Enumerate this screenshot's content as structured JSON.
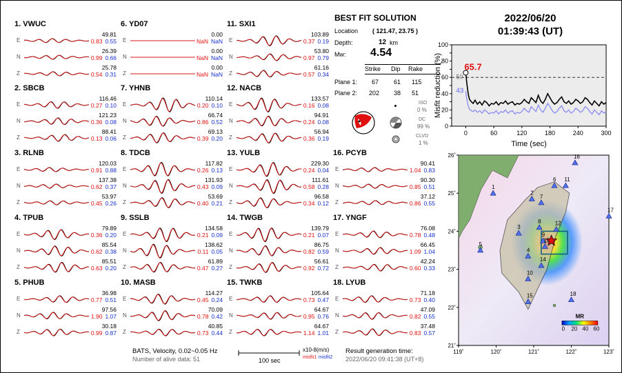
{
  "stations": [
    {
      "label": "1.  VWUC",
      "comps": [
        {
          "c": "E",
          "amp": "49.81",
          "m1": "0.83",
          "m2": "0.55",
          "shape": "flat"
        },
        {
          "c": "N",
          "amp": "26.39",
          "m1": "0.99",
          "m2": "0.66",
          "shape": "flat"
        },
        {
          "c": "Z",
          "amp": "25.78",
          "m1": "0.54",
          "m2": "0.31",
          "shape": "flat"
        }
      ]
    },
    {
      "label": "2.  SBCB",
      "comps": [
        {
          "c": "E",
          "amp": "116.46",
          "m1": "0.27",
          "m2": "0.10",
          "shape": "low"
        },
        {
          "c": "N",
          "amp": "121.23",
          "m1": "0.36",
          "m2": "0.08",
          "shape": "low"
        },
        {
          "c": "Z",
          "amp": "88.41",
          "m1": "0.13",
          "m2": "0.06",
          "shape": "low"
        }
      ]
    },
    {
      "label": "3.  RLNB",
      "comps": [
        {
          "c": "E",
          "amp": "120.03",
          "m1": "0.91",
          "m2": "0.88",
          "shape": "flat"
        },
        {
          "c": "N",
          "amp": "137.38",
          "m1": "0.62",
          "m2": "0.37",
          "shape": "flat"
        },
        {
          "c": "Z",
          "amp": "53.97",
          "m1": "0.45",
          "m2": "0.26",
          "shape": "flat"
        }
      ]
    },
    {
      "label": "4.  TPUB",
      "comps": [
        {
          "c": "E",
          "amp": "79.89",
          "m1": "0.36",
          "m2": "0.20",
          "shape": "mid"
        },
        {
          "c": "N",
          "amp": "85.54",
          "m1": "0.62",
          "m2": "0.38",
          "shape": "mid"
        },
        {
          "c": "Z",
          "amp": "85.51",
          "m1": "0.63",
          "m2": "0.20",
          "shape": "mid"
        }
      ]
    },
    {
      "label": "5.  PHUB",
      "comps": [
        {
          "c": "E",
          "amp": "36.98",
          "m1": "0.77",
          "m2": "0.51",
          "shape": "low"
        },
        {
          "c": "N",
          "amp": "97.56",
          "m1": "1.90",
          "m2": "1.07",
          "shape": "low"
        },
        {
          "c": "Z",
          "amp": "30.18",
          "m1": "0.99",
          "m2": "0.87",
          "shape": "low"
        }
      ]
    },
    {
      "label": "6.  YD07",
      "comps": [
        {
          "c": "E",
          "amp": "0.00",
          "m1": "NaN",
          "m2": "NaN",
          "shape": "none"
        },
        {
          "c": "N",
          "amp": "0.00",
          "m1": "NaN",
          "m2": "NaN",
          "shape": "none"
        },
        {
          "c": "Z",
          "amp": "0.00",
          "m1": "NaN",
          "m2": "NaN",
          "shape": "none"
        }
      ]
    },
    {
      "label": "7.  YHNB",
      "comps": [
        {
          "c": "E",
          "amp": "110.14",
          "m1": "0.20",
          "m2": "0.10",
          "shape": "big"
        },
        {
          "c": "N",
          "amp": "66.74",
          "m1": "0.86",
          "m2": "0.52",
          "shape": "mid"
        },
        {
          "c": "Z",
          "amp": "69.13",
          "m1": "0.39",
          "m2": "0.20",
          "shape": "mid"
        }
      ]
    },
    {
      "label": "8.  TDCB",
      "comps": [
        {
          "c": "E",
          "amp": "117.82",
          "m1": "0.26",
          "m2": "0.13",
          "shape": "big"
        },
        {
          "c": "N",
          "amp": "131.93",
          "m1": "0.43",
          "m2": "0.09",
          "shape": "big"
        },
        {
          "c": "Z",
          "amp": "53.69",
          "m1": "0.40",
          "m2": "0.21",
          "shape": "mid"
        }
      ]
    },
    {
      "label": "9.  SSLB",
      "comps": [
        {
          "c": "E",
          "amp": "134.58",
          "m1": "0.21",
          "m2": "0.09",
          "shape": "big"
        },
        {
          "c": "N",
          "amp": "138.62",
          "m1": "0.11",
          "m2": "0.05",
          "shape": "big"
        },
        {
          "c": "Z",
          "amp": "61.89",
          "m1": "0.47",
          "m2": "0.27",
          "shape": "mid"
        }
      ]
    },
    {
      "label": "10.  MASB",
      "comps": [
        {
          "c": "E",
          "amp": "114.27",
          "m1": "0.45",
          "m2": "0.24",
          "shape": "mid"
        },
        {
          "c": "N",
          "amp": "70.09",
          "m1": "0.78",
          "m2": "0.42",
          "shape": "mid"
        },
        {
          "c": "Z",
          "amp": "40.85",
          "m1": "0.73",
          "m2": "0.44",
          "shape": "low"
        }
      ]
    },
    {
      "label": "11.  SXI1",
      "comps": [
        {
          "c": "E",
          "amp": "103.89",
          "m1": "0.37",
          "m2": "0.19",
          "shape": "mid"
        },
        {
          "c": "N",
          "amp": "53.80",
          "m1": "0.97",
          "m2": "0.79",
          "shape": "low"
        },
        {
          "c": "Z",
          "amp": "61.16",
          "m1": "0.57",
          "m2": "0.34",
          "shape": "low"
        }
      ]
    },
    {
      "label": "12.  NACB",
      "comps": [
        {
          "c": "E",
          "amp": "133.57",
          "m1": "0.16",
          "m2": "0.08",
          "shape": "big"
        },
        {
          "c": "N",
          "amp": "94.91",
          "m1": "0.24",
          "m2": "0.08",
          "shape": "mid"
        },
        {
          "c": "Z",
          "amp": "56.94",
          "m1": "0.36",
          "m2": "0.19",
          "shape": "mid"
        }
      ]
    },
    {
      "label": "13.  YULB",
      "comps": [
        {
          "c": "E",
          "amp": "229.30",
          "m1": "0.24",
          "m2": "0.04",
          "shape": "big"
        },
        {
          "c": "N",
          "amp": "111.61",
          "m1": "0.58",
          "m2": "0.28",
          "shape": "big"
        },
        {
          "c": "Z",
          "amp": "96.58",
          "m1": "0.34",
          "m2": "0.12",
          "shape": "mid"
        }
      ]
    },
    {
      "label": "14.  TWGB",
      "comps": [
        {
          "c": "E",
          "amp": "139.79",
          "m1": "0.21",
          "m2": "0.07",
          "shape": "big"
        },
        {
          "c": "N",
          "amp": "86.75",
          "m1": "0.82",
          "m2": "0.59",
          "shape": "mid"
        },
        {
          "c": "Z",
          "amp": "56.61",
          "m1": "0.92",
          "m2": "0.72",
          "shape": "mid"
        }
      ]
    },
    {
      "label": "15.  TWKB",
      "comps": [
        {
          "c": "E",
          "amp": "105.64",
          "m1": "0.73",
          "m2": "0.47",
          "shape": "low"
        },
        {
          "c": "N",
          "amp": "64.67",
          "m1": "0.95",
          "m2": "0.76",
          "shape": "low"
        },
        {
          "c": "Z",
          "amp": "64.67",
          "m1": "1.14",
          "m2": "1.01",
          "shape": "low"
        }
      ]
    },
    {
      "label": "16.  PCYB",
      "comps": [
        {
          "c": "E",
          "amp": "90.41",
          "m1": "1.04",
          "m2": "0.83",
          "shape": "flat"
        },
        {
          "c": "N",
          "amp": "90.30",
          "m1": "0.85",
          "m2": "0.51",
          "shape": "flat"
        },
        {
          "c": "Z",
          "amp": "37.12",
          "m1": "0.86",
          "m2": "0.55",
          "shape": "flat"
        }
      ]
    },
    {
      "label": "17.  YNGF",
      "comps": [
        {
          "c": "E",
          "amp": "76.08",
          "m1": "0.78",
          "m2": "0.48",
          "shape": "low"
        },
        {
          "c": "N",
          "amp": "66.45",
          "m1": "1.09",
          "m2": "1.04",
          "shape": "low"
        },
        {
          "c": "Z",
          "amp": "42.24",
          "m1": "0.60",
          "m2": "0.33",
          "shape": "low"
        }
      ]
    },
    {
      "label": "18.  LYUB",
      "comps": [
        {
          "c": "E",
          "amp": "71.18",
          "m1": "0.73",
          "m2": "0.40",
          "shape": "low"
        },
        {
          "c": "N",
          "amp": "47.09",
          "m1": "0.82",
          "m2": "0.55",
          "shape": "low"
        },
        {
          "c": "Z",
          "amp": "37.48",
          "m1": "0.83",
          "m2": "0.57",
          "shape": "low"
        }
      ]
    }
  ],
  "solution": {
    "title": "BEST FIT SOLUTION",
    "location_label": "Location",
    "location_value": "( 121.47, 23.75 )",
    "depth_label": "Depth:",
    "depth_value": "12",
    "depth_unit": "km",
    "mw_label": "Mw:",
    "mw_value": "4.54",
    "headers": [
      "Strike",
      "Dip",
      "Rake"
    ],
    "planes": [
      {
        "label": "Plane 1:",
        "strike": "67",
        "dip": "61",
        "rake": "115"
      },
      {
        "label": "Plane 2:",
        "strike": "202",
        "dip": "38",
        "rake": "51"
      }
    ],
    "iso_label": "ISO",
    "iso_value": "0 %",
    "dc_label": "DC",
    "dc_value": "99 %",
    "clvd_label": "CLVD",
    "clvd_value": "1 %"
  },
  "datetime": {
    "date": "2022/06/20",
    "time": "01:39:43  (UT)"
  },
  "footer": {
    "info1": "BATS, Velocity, 0.02~0.05 Hz",
    "info2": "Number of alive data: 51",
    "scale_label": "100 sec",
    "amp_unit": "x10-8(m/s)",
    "misfit1": "misfit1",
    "misfit2": "misfit2",
    "gen_label": "Result generation time:",
    "gen_value": "2022/06/20 09:41:38 (UT+8)"
  },
  "chart_data": [
    {
      "type": "line",
      "ylabel": "Misfit reduction (%)",
      "xlabel": "Time (sec)",
      "xlim": [
        -30,
        300
      ],
      "ylim": [
        0,
        100
      ],
      "xticks": [
        0,
        60,
        120,
        180,
        240,
        300
      ],
      "yticks": [
        0,
        10,
        20,
        30,
        40,
        50,
        60,
        70,
        80,
        90,
        100
      ],
      "hline": 60,
      "peak_label": "65.7",
      "label_50": "50",
      "label_43": "43",
      "series": [
        {
          "color": "#000000",
          "x": [
            0,
            2,
            4,
            6,
            8,
            12,
            16,
            20,
            25,
            30,
            35,
            40,
            45,
            50,
            55,
            60,
            65,
            70,
            75,
            80,
            85,
            90,
            95,
            100,
            105,
            110,
            115,
            120,
            125,
            130,
            135,
            140,
            145,
            150,
            155,
            160,
            165,
            170,
            175,
            180,
            185,
            190,
            195,
            200,
            205,
            210,
            215,
            220,
            225,
            230,
            235,
            240,
            245,
            250,
            255,
            260,
            265,
            270,
            275,
            280,
            285,
            290,
            295,
            300
          ],
          "y": [
            65.7,
            55,
            45,
            38,
            33,
            30,
            28,
            32,
            27,
            30,
            26,
            31,
            29,
            25,
            28,
            27,
            30,
            26,
            29,
            28,
            31,
            27,
            29,
            30,
            26,
            28,
            27,
            29,
            33,
            30,
            28,
            35,
            32,
            29,
            38,
            31,
            28,
            33,
            40,
            35,
            30,
            27,
            29,
            33,
            36,
            30,
            28,
            31,
            27,
            29,
            33,
            31,
            28,
            30,
            35,
            33,
            29,
            26,
            31,
            28,
            25,
            30,
            27,
            29
          ]
        },
        {
          "color": "#9090f0",
          "x": [
            0,
            2,
            4,
            6,
            8,
            12,
            16,
            20,
            25,
            30,
            35,
            40,
            45,
            50,
            55,
            60,
            65,
            70,
            75,
            80,
            85,
            90,
            95,
            100,
            105,
            110,
            115,
            120,
            125,
            130,
            135,
            140,
            145,
            150,
            155,
            160,
            165,
            170,
            175,
            180,
            185,
            190,
            195,
            200,
            205,
            210,
            215,
            220,
            225,
            230,
            235,
            240,
            245,
            250,
            255,
            260,
            265,
            270,
            275,
            280,
            285,
            290,
            295,
            300
          ],
          "y": [
            43,
            35,
            28,
            24,
            21,
            19,
            18,
            20,
            17,
            19,
            16,
            20,
            18,
            15,
            17,
            16,
            19,
            15,
            18,
            17,
            20,
            16,
            18,
            19,
            15,
            17,
            16,
            18,
            22,
            19,
            17,
            24,
            21,
            18,
            26,
            20,
            17,
            22,
            28,
            24,
            19,
            16,
            18,
            22,
            25,
            19,
            17,
            20,
            16,
            18,
            22,
            20,
            17,
            19,
            24,
            22,
            18,
            15,
            20,
            17,
            14,
            19,
            16,
            18
          ]
        }
      ]
    },
    {
      "type": "heatmap",
      "xlabel": "",
      "ylabel": "",
      "xlim": [
        119,
        123
      ],
      "ylim": [
        21,
        26
      ],
      "xticks": [
        "119˚",
        "120˚",
        "121˚",
        "122˚",
        "123˚"
      ],
      "yticks": [
        "21˚",
        "22˚",
        "23˚",
        "24˚",
        "25˚",
        "26˚"
      ],
      "legend_title": "MR",
      "legend_ticks": [
        "0",
        "20",
        "40",
        "60"
      ],
      "epicenter": [
        121.47,
        23.75
      ],
      "stations": [
        {
          "id": "1",
          "lon": 119.92,
          "lat": 25.0
        },
        {
          "id": "2",
          "lon": 120.95,
          "lat": 24.85
        },
        {
          "id": "3",
          "lon": 120.6,
          "lat": 23.95
        },
        {
          "id": "4",
          "lon": 120.85,
          "lat": 23.35
        },
        {
          "id": "5",
          "lon": 119.58,
          "lat": 23.5
        },
        {
          "id": "6",
          "lon": 121.55,
          "lat": 25.2
        },
        {
          "id": "7",
          "lon": 121.2,
          "lat": 24.75
        },
        {
          "id": "8",
          "lon": 121.15,
          "lat": 24.1
        },
        {
          "id": "9",
          "lon": 121.25,
          "lat": 23.75
        },
        {
          "id": "10",
          "lon": 120.85,
          "lat": 22.75
        },
        {
          "id": "11",
          "lon": 121.85,
          "lat": 25.2
        },
        {
          "id": "12",
          "lon": 121.6,
          "lat": 24.05
        },
        {
          "id": "13",
          "lon": 121.3,
          "lat": 23.6
        },
        {
          "id": "14",
          "lon": 121.2,
          "lat": 23.1
        },
        {
          "id": "15",
          "lon": 120.85,
          "lat": 22.15
        },
        {
          "id": "16",
          "lon": 122.1,
          "lat": 25.8
        },
        {
          "id": "17",
          "lon": 123.0,
          "lat": 24.4
        },
        {
          "id": "18",
          "lon": 122.0,
          "lat": 22.2
        }
      ]
    }
  ]
}
